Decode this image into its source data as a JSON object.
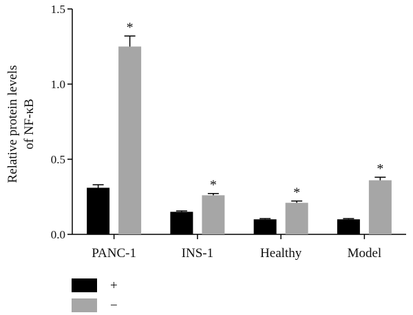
{
  "chart_data": {
    "type": "bar",
    "ylabel_line1": "Relative protein levels",
    "ylabel_line2": "of NF-κB",
    "ylim": [
      0,
      1.5
    ],
    "yticks": [
      "0.0",
      "0.5",
      "1.0",
      "1.5"
    ],
    "ytick_values": [
      0,
      0.5,
      1.0,
      1.5
    ],
    "categories": [
      "PANC-1",
      "INS-1",
      "Healthy",
      "Model"
    ],
    "series": [
      {
        "name": "+",
        "color": "#000000",
        "values": [
          0.31,
          0.15,
          0.1,
          0.1
        ],
        "errors": [
          0.02,
          0.006,
          0.005,
          0.005
        ]
      },
      {
        "name": "−",
        "color": "#a6a6a6",
        "values": [
          1.25,
          0.26,
          0.21,
          0.36
        ],
        "errors": [
          0.07,
          0.012,
          0.012,
          0.02
        ]
      }
    ],
    "annotations": [
      "*",
      "*",
      "*",
      "*"
    ],
    "grid": false,
    "legend_position": "bottom-left"
  }
}
